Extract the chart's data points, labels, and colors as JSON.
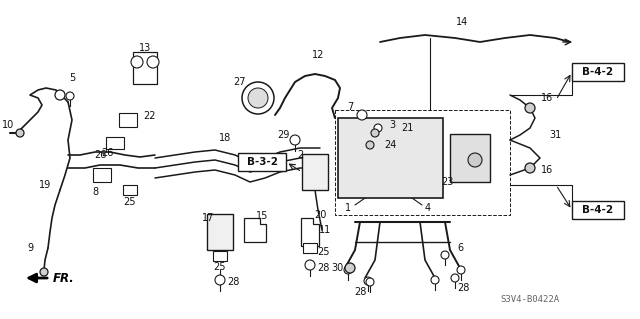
{
  "bg_color": "#ffffff",
  "line_color": "#1a1a1a",
  "text_color": "#111111",
  "fig_width": 6.4,
  "fig_height": 3.19,
  "dpi": 100,
  "watermark": "S3V4-B0422A",
  "ref_b42": "B-4-2",
  "ref_b32": "B-3-2"
}
